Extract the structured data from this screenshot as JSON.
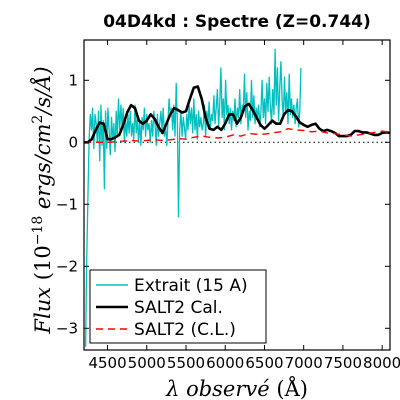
{
  "chart_data": {
    "type": "line",
    "title": "04D4kd : Spectre (Z=0.744)",
    "xlabel_parts": {
      "lambda": "λ",
      "word": "observé",
      "unit": "(Å)"
    },
    "ylabel_parts": {
      "flux": "Flux",
      "ten": "10",
      "exp": "−18",
      "units": "ergs/cm",
      "two": "2",
      "tail": "/s/Å)"
    },
    "xlim": [
      4200,
      8100
    ],
    "ylim": [
      -3.35,
      1.65
    ],
    "x_ticks": [
      4500,
      5000,
      5500,
      6000,
      6500,
      7000,
      7500,
      8000
    ],
    "x_tick_labels": [
      "4500",
      "5000",
      "5500",
      "6000",
      "6500",
      "7000",
      "7500",
      "8000"
    ],
    "y_ticks": [
      1,
      0,
      -1,
      -2,
      -3
    ],
    "y_tick_labels": [
      "1",
      "0",
      "−1",
      "−2",
      "−3"
    ],
    "zero_line": {
      "y": 0,
      "style": "dotted",
      "color": "#000000"
    },
    "legend": {
      "placement": "lower-left",
      "entries": [
        {
          "label": "Extrait (15 A)",
          "color": "#00bfbf",
          "style": "solid"
        },
        {
          "label": "SALT2 Cal.",
          "color": "#000000",
          "style": "solid"
        },
        {
          "label": "SALT2 (C.L.)",
          "color": "#ff0000",
          "style": "dashed"
        }
      ]
    },
    "series": [
      {
        "name": "Extrait (15 A)",
        "color": "#00bfbf",
        "x_start": 4220,
        "x_step": 15,
        "values": [
          -3.3,
          -1.9,
          -0.9,
          0.05,
          0.45,
          0.2,
          0.55,
          -0.1,
          0.45,
          0.3,
          0.0,
          0.5,
          -0.3,
          0.6,
          -0.05,
          0.35,
          -0.75,
          0.5,
          -0.1,
          0.55,
          0.2,
          -0.2,
          0.4,
          0.05,
          0.3,
          -0.15,
          0.5,
          0.1,
          0.7,
          0.2,
          0.6,
          0.25,
          0.55,
          0.0,
          0.35,
          0.1,
          0.45,
          0.15,
          0.5,
          0.1,
          0.3,
          0.05,
          0.6,
          0.15,
          0.4,
          0.0,
          0.35,
          -0.05,
          0.4,
          0.2,
          0.55,
          0.1,
          0.45,
          0.2,
          0.3,
          0.0,
          0.35,
          0.1,
          0.5,
          0.3,
          -0.05,
          0.45,
          0.1,
          0.3,
          0.5,
          0.2,
          0.55,
          0.1,
          0.25,
          -0.05,
          0.35,
          0.7,
          0.45,
          0.55,
          0.2,
          0.6,
          0.1,
          0.95,
          0.3,
          -1.2,
          0.2,
          0.5,
          0.1,
          0.4,
          0.25,
          0.05,
          0.45,
          0.2,
          0.6,
          0.3,
          0.55,
          0.15,
          0.7,
          0.2,
          0.45,
          0.05,
          0.5,
          0.25,
          0.4,
          0.2,
          0.3,
          0.6,
          0.1,
          0.5,
          0.3,
          0.65,
          0.2,
          0.45,
          0.35,
          0.75,
          0.3,
          0.55,
          0.85,
          0.25,
          0.6,
          1.2,
          0.4,
          0.7,
          0.2,
          1.0,
          0.45,
          0.6,
          0.3,
          0.55,
          0.2,
          0.5,
          0.35,
          0.7,
          0.25,
          0.55,
          0.4,
          0.85,
          0.3,
          0.6,
          0.5,
          1.1,
          0.4,
          0.8,
          0.2,
          0.5,
          0.35,
          1.0,
          0.4,
          0.75,
          0.3,
          0.55,
          0.4,
          0.6,
          0.25,
          0.5,
          1.0,
          0.4,
          0.7,
          0.3,
          0.95,
          0.5,
          1.05,
          0.6,
          0.3,
          0.85,
          0.45,
          1.5,
          0.6,
          1.2,
          0.35,
          0.9,
          1.3,
          0.7,
          0.4,
          1.05,
          0.5,
          0.8,
          0.3,
          1.1,
          0.45,
          0.7,
          0.4,
          0.6,
          0.3,
          0.55,
          0.7,
          0.25,
          0.5,
          1.2
        ]
      },
      {
        "name": "SALT2 Cal.",
        "color": "#000000",
        "x": [
          4200,
          4250,
          4300,
          4350,
          4400,
          4450,
          4500,
          4550,
          4600,
          4650,
          4700,
          4750,
          4800,
          4850,
          4900,
          4950,
          5000,
          5050,
          5100,
          5150,
          5200,
          5250,
          5300,
          5350,
          5400,
          5450,
          5500,
          5550,
          5600,
          5650,
          5700,
          5750,
          5800,
          5850,
          5900,
          5950,
          6000,
          6050,
          6100,
          6150,
          6200,
          6250,
          6300,
          6350,
          6400,
          6450,
          6500,
          6550,
          6600,
          6650,
          6700,
          6750,
          6800,
          6850,
          6900,
          6950,
          7000,
          7050,
          7100,
          7150,
          7200,
          7250,
          7300,
          7350,
          7400,
          7450,
          7500,
          7550,
          7600,
          7650,
          7700,
          7750,
          7800,
          7850,
          7900,
          7950,
          8000,
          8050,
          8100
        ],
        "values": [
          0.0,
          0.0,
          0.05,
          0.2,
          0.32,
          0.3,
          0.05,
          0.05,
          0.08,
          0.12,
          0.28,
          0.48,
          0.6,
          0.55,
          0.35,
          0.3,
          0.35,
          0.45,
          0.38,
          0.25,
          0.15,
          0.3,
          0.45,
          0.55,
          0.52,
          0.48,
          0.5,
          0.7,
          0.88,
          0.9,
          0.7,
          0.4,
          0.22,
          0.2,
          0.25,
          0.2,
          0.3,
          0.45,
          0.45,
          0.3,
          0.4,
          0.58,
          0.62,
          0.52,
          0.4,
          0.28,
          0.22,
          0.28,
          0.35,
          0.3,
          0.3,
          0.45,
          0.52,
          0.5,
          0.42,
          0.32,
          0.28,
          0.25,
          0.28,
          0.3,
          0.22,
          0.18,
          0.2,
          0.18,
          0.15,
          0.1,
          0.1,
          0.1,
          0.12,
          0.18,
          0.18,
          0.16,
          0.16,
          0.14,
          0.12,
          0.12,
          0.15,
          0.16,
          0.15
        ]
      },
      {
        "name": "SALT2 (C.L.)",
        "color": "#ff0000",
        "x": [
          4200,
          4300,
          4400,
          4500,
          4600,
          4700,
          4800,
          4900,
          5000,
          5100,
          5200,
          5300,
          5400,
          5500,
          5600,
          5700,
          5800,
          5900,
          6000,
          6100,
          6200,
          6300,
          6400,
          6500,
          6600,
          6700,
          6800,
          6900,
          7000,
          7100,
          7200,
          7300,
          7400,
          7500,
          7600,
          7700,
          7800,
          7900,
          8000,
          8100
        ],
        "values": [
          0.0,
          0.0,
          0.0,
          0.0,
          0.01,
          0.02,
          0.03,
          0.02,
          0.03,
          0.04,
          0.03,
          0.04,
          0.06,
          0.05,
          0.08,
          0.1,
          0.08,
          0.07,
          0.08,
          0.12,
          0.1,
          0.14,
          0.13,
          0.13,
          0.15,
          0.17,
          0.22,
          0.2,
          0.19,
          0.17,
          0.18,
          0.15,
          0.14,
          0.12,
          0.1,
          0.12,
          0.14,
          0.16,
          0.18,
          0.16
        ]
      }
    ]
  }
}
